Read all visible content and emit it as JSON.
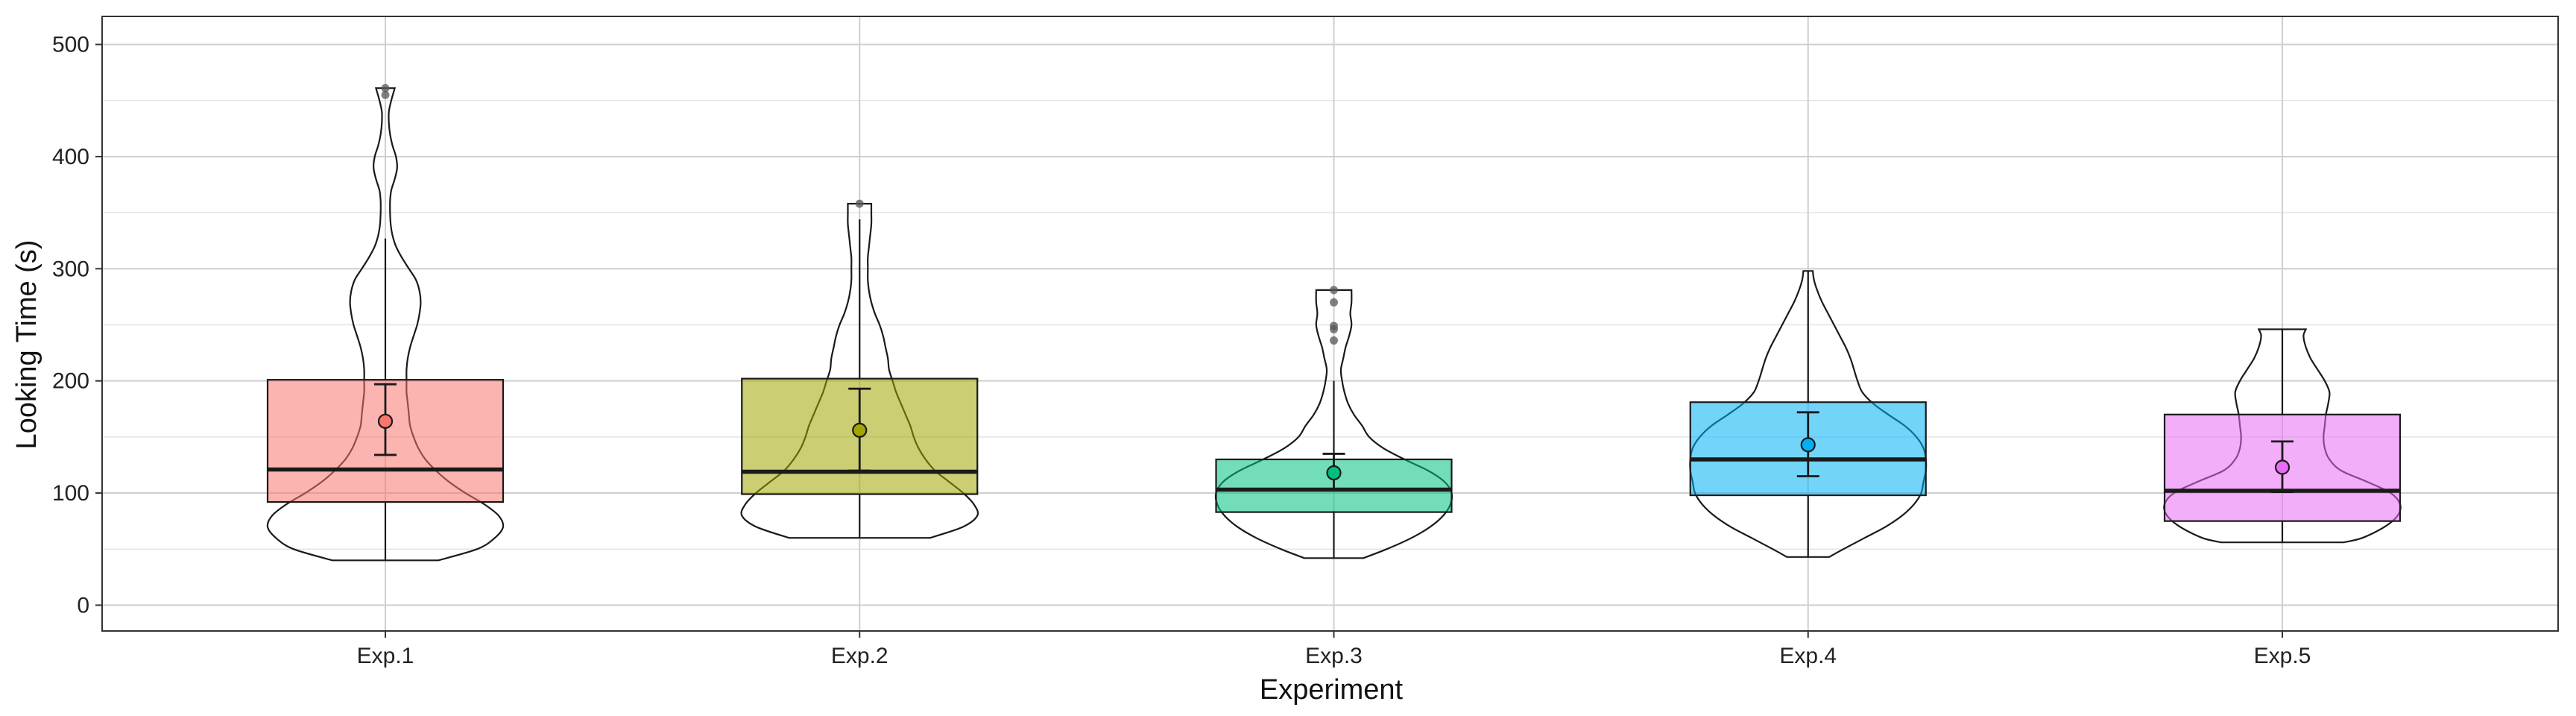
{
  "chart_data": {
    "type": "box-violin",
    "title": "",
    "xlabel": "Experiment",
    "ylabel": "Looking Time (s)",
    "ylim": [
      -23,
      525
    ],
    "yticks": [
      0,
      100,
      200,
      300,
      400,
      500
    ],
    "grid": true,
    "categories": [
      "Exp.1",
      "Exp.2",
      "Exp.3",
      "Exp.4",
      "Exp.5"
    ],
    "colors": [
      "#f8766d",
      "#a3a500",
      "#00bf7d",
      "#00b0f6",
      "#e76bf3"
    ],
    "box_alpha": 0.55,
    "series": [
      {
        "category": "Exp.1",
        "min": 40,
        "q1": 92,
        "median": 121,
        "q3": 201,
        "max": 327,
        "mean": 164,
        "ci": [
          134,
          197
        ],
        "outliers": [
          455,
          461
        ],
        "violin": {
          "y": [
            40,
            50,
            60,
            70,
            80,
            90,
            100,
            110,
            120,
            130,
            140,
            150,
            160,
            170,
            180,
            190,
            200,
            210,
            220,
            230,
            240,
            250,
            260,
            270,
            280,
            290,
            300,
            310,
            320,
            330,
            340,
            350,
            360,
            370,
            380,
            390,
            400,
            410,
            420,
            430,
            440,
            450,
            461
          ],
          "w": [
            0.45,
            0.78,
            0.93,
            1.0,
            0.96,
            0.84,
            0.68,
            0.54,
            0.43,
            0.34,
            0.28,
            0.24,
            0.21,
            0.2,
            0.19,
            0.18,
            0.18,
            0.18,
            0.19,
            0.21,
            0.24,
            0.27,
            0.29,
            0.3,
            0.29,
            0.26,
            0.2,
            0.14,
            0.09,
            0.06,
            0.045,
            0.04,
            0.04,
            0.05,
            0.08,
            0.1,
            0.09,
            0.06,
            0.04,
            0.03,
            0.03,
            0.05,
            0.08
          ]
        }
      },
      {
        "category": "Exp.2",
        "min": 60,
        "q1": 99,
        "median": 119,
        "q3": 202,
        "max": 344,
        "mean": 156,
        "ci": [
          120,
          193
        ],
        "outliers": [
          358
        ],
        "violin": {
          "y": [
            60,
            70,
            80,
            90,
            100,
            110,
            120,
            130,
            140,
            150,
            160,
            170,
            180,
            190,
            200,
            210,
            220,
            230,
            240,
            250,
            260,
            270,
            280,
            290,
            300,
            310,
            320,
            330,
            340,
            350,
            358
          ],
          "w": [
            0.6,
            0.88,
            1.0,
            0.97,
            0.88,
            0.76,
            0.64,
            0.56,
            0.5,
            0.46,
            0.43,
            0.39,
            0.35,
            0.31,
            0.28,
            0.25,
            0.24,
            0.22,
            0.2,
            0.17,
            0.13,
            0.1,
            0.08,
            0.07,
            0.07,
            0.07,
            0.08,
            0.09,
            0.1,
            0.1,
            0.1
          ]
        }
      },
      {
        "category": "Exp.3",
        "min": 42,
        "q1": 83,
        "median": 103,
        "q3": 130,
        "max": 200,
        "mean": 118,
        "ci": [
          103,
          135
        ],
        "outliers": [
          236,
          246,
          249,
          270,
          281
        ],
        "violin": {
          "y": [
            42,
            50,
            60,
            70,
            80,
            90,
            100,
            110,
            120,
            130,
            140,
            150,
            160,
            170,
            180,
            190,
            200,
            210,
            220,
            230,
            240,
            250,
            260,
            270,
            281
          ],
          "w": [
            0.25,
            0.45,
            0.66,
            0.82,
            0.93,
            0.99,
            1.0,
            0.94,
            0.8,
            0.6,
            0.42,
            0.3,
            0.24,
            0.17,
            0.12,
            0.09,
            0.07,
            0.06,
            0.08,
            0.1,
            0.13,
            0.15,
            0.14,
            0.15,
            0.15
          ]
        }
      },
      {
        "category": "Exp.4",
        "min": 43,
        "q1": 98,
        "median": 130,
        "q3": 181,
        "max": 298,
        "mean": 143,
        "ci": [
          115,
          172
        ],
        "outliers": [],
        "violin": {
          "y": [
            43,
            50,
            60,
            70,
            80,
            90,
            100,
            110,
            120,
            130,
            140,
            150,
            160,
            170,
            180,
            190,
            200,
            210,
            220,
            230,
            240,
            250,
            260,
            270,
            280,
            290,
            298
          ],
          "w": [
            0.18,
            0.3,
            0.48,
            0.66,
            0.8,
            0.9,
            0.96,
            0.98,
            1.0,
            1.0,
            0.98,
            0.92,
            0.82,
            0.68,
            0.55,
            0.46,
            0.42,
            0.39,
            0.36,
            0.32,
            0.27,
            0.22,
            0.17,
            0.12,
            0.08,
            0.05,
            0.04
          ]
        }
      },
      {
        "category": "Exp.5",
        "min": 56,
        "q1": 75,
        "median": 102,
        "q3": 170,
        "max": 246,
        "mean": 123,
        "ci": [
          101,
          146
        ],
        "outliers": [],
        "violin": {
          "y": [
            56,
            60,
            70,
            80,
            90,
            100,
            110,
            120,
            130,
            140,
            150,
            160,
            170,
            180,
            190,
            200,
            210,
            220,
            230,
            240,
            246
          ],
          "w": [
            0.52,
            0.68,
            0.87,
            0.98,
            1.0,
            0.92,
            0.72,
            0.5,
            0.4,
            0.36,
            0.35,
            0.36,
            0.37,
            0.39,
            0.4,
            0.36,
            0.3,
            0.24,
            0.2,
            0.18,
            0.2
          ]
        }
      }
    ]
  }
}
